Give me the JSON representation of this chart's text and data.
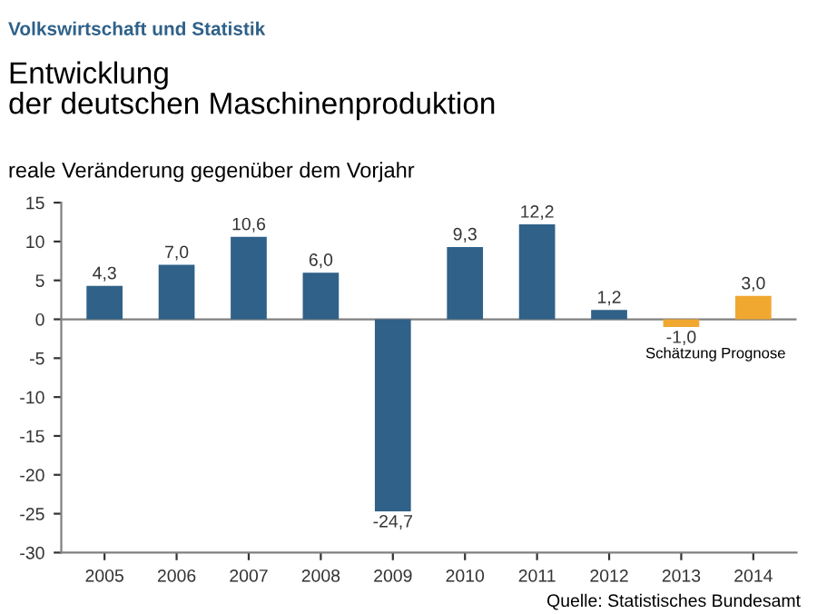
{
  "chart_data": {
    "type": "bar",
    "title": "Entwicklung\nder deutschen Maschinenproduktion",
    "subtitle": "Volkswirtschaft und Statistik",
    "ylabel": "reale Veränderung gegenüber dem Vorjahr",
    "categories": [
      "2005",
      "2006",
      "2007",
      "2008",
      "2009",
      "2010",
      "2011",
      "2012",
      "2013",
      "2014"
    ],
    "values": [
      4.3,
      7.0,
      10.6,
      6.0,
      -24.7,
      9.3,
      12.2,
      1.2,
      -1.0,
      3.0
    ],
    "colors": [
      "#2f6189",
      "#2f6189",
      "#2f6189",
      "#2f6189",
      "#2f6189",
      "#2f6189",
      "#2f6189",
      "#2f6189",
      "#f0a830",
      "#f0a830"
    ],
    "value_labels": [
      "4,3",
      "7,0",
      "10,6",
      "6,0",
      "-24,7",
      "9,3",
      "12,2",
      "1,2",
      "-1,0",
      "3,0"
    ],
    "ylim": [
      -30,
      15
    ],
    "yticks": [
      {
        "value": -30,
        "label": "-30"
      },
      {
        "value": -25,
        "label": "-25"
      },
      {
        "value": -20,
        "label": "-20"
      },
      {
        "value": -15,
        "label": "-15"
      },
      {
        "value": -10,
        "label": "-10"
      },
      {
        "value": -5,
        "label": "-5"
      },
      0,
      5,
      10,
      15
    ],
    "ref_lines": [
      {
        "axis": "y",
        "value": 0,
        "color": "#808080"
      }
    ],
    "annotations": [
      "Schätzung",
      "Prognose",
      "Quelle: Statistisches Bundesamt"
    ],
    "grid": false
  }
}
